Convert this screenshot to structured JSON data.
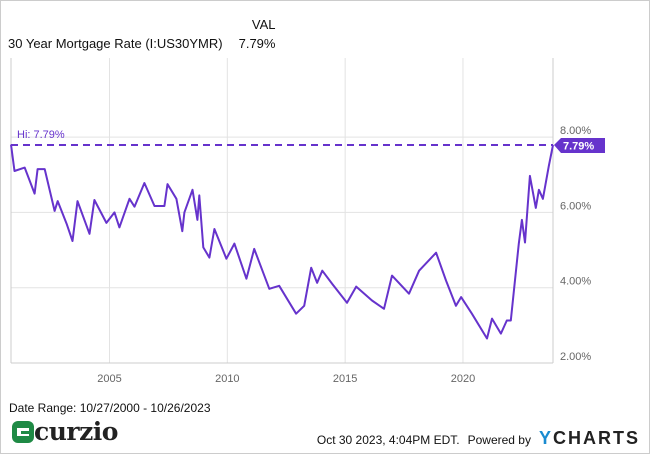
{
  "header": {
    "val_col": "VAL",
    "series_label": "30 Year Mortgage Rate (I:US30YMR)",
    "series_value": "7.79%"
  },
  "chart_data": {
    "type": "line",
    "title": "",
    "xlabel": "",
    "ylabel": "",
    "xlim": [
      2000.82,
      2023.82
    ],
    "ylim": [
      2,
      10.1
    ],
    "x_ticks": [
      {
        "v": 2005,
        "label": "2005"
      },
      {
        "v": 2010,
        "label": "2010"
      },
      {
        "v": 2015,
        "label": "2015"
      },
      {
        "v": 2020,
        "label": "2020"
      }
    ],
    "y_ticks": [
      {
        "v": 2,
        "label": "2.00%"
      },
      {
        "v": 4,
        "label": "4.00%"
      },
      {
        "v": 6,
        "label": "6.00%"
      },
      {
        "v": 8,
        "label": "8.00%"
      }
    ],
    "grid": true,
    "color": "#6633cc",
    "high": {
      "value": 7.79,
      "label": "Hi: 7.79%"
    },
    "last_value_label": "7.79%",
    "series": [
      {
        "x": [
          2000.82,
          2000.97,
          2001.4,
          2001.82,
          2001.95,
          2002.25,
          2002.67,
          2002.8,
          2003.18,
          2003.43,
          2003.64,
          2004.15,
          2004.36,
          2004.87,
          2005.21,
          2005.42,
          2005.85,
          2006.06,
          2006.48,
          2006.91,
          2007.33,
          2007.46,
          2007.84,
          2008.09,
          2008.18,
          2008.52,
          2008.73,
          2008.81,
          2008.98,
          2009.24,
          2009.45,
          2009.96,
          2010.3,
          2010.81,
          2011.14,
          2011.78,
          2012.2,
          2012.92,
          2013.26,
          2013.56,
          2013.81,
          2014.03,
          2014.45,
          2015.08,
          2015.47,
          2016.14,
          2016.65,
          2016.99,
          2017.71,
          2018.14,
          2018.86,
          2019.28,
          2019.7,
          2019.92,
          2020.38,
          2021.02,
          2021.23,
          2021.61,
          2021.86,
          2022.03,
          2022.37,
          2022.5,
          2022.63,
          2022.84,
          2023.09,
          2023.22,
          2023.39,
          2023.64,
          2023.82
        ],
        "y": [
          7.8,
          7.1,
          7.19,
          6.5,
          7.15,
          7.15,
          6.04,
          6.3,
          5.7,
          5.24,
          6.3,
          5.43,
          6.33,
          5.72,
          6.0,
          5.6,
          6.36,
          6.15,
          6.78,
          6.17,
          6.17,
          6.75,
          6.36,
          5.5,
          6.0,
          6.6,
          5.8,
          6.45,
          5.07,
          4.8,
          5.56,
          4.77,
          5.17,
          4.24,
          5.03,
          3.97,
          4.05,
          3.31,
          3.52,
          4.53,
          4.13,
          4.45,
          4.1,
          3.6,
          4.03,
          3.66,
          3.44,
          4.32,
          3.84,
          4.45,
          4.93,
          4.19,
          3.52,
          3.75,
          3.31,
          2.65,
          3.18,
          2.78,
          3.13,
          3.13,
          5.17,
          5.8,
          5.2,
          6.97,
          6.12,
          6.6,
          6.36,
          7.23,
          7.79
        ]
      }
    ]
  },
  "footer": {
    "date_range": "Date Range: 10/27/2000 - 10/26/2023",
    "timestamp": "Oct 30 2023, 4:04PM EDT.",
    "powered_by": "Powered by",
    "ycharts_y": "Y",
    "ycharts_rest": "CHARTS",
    "logo_text": "curzio"
  }
}
